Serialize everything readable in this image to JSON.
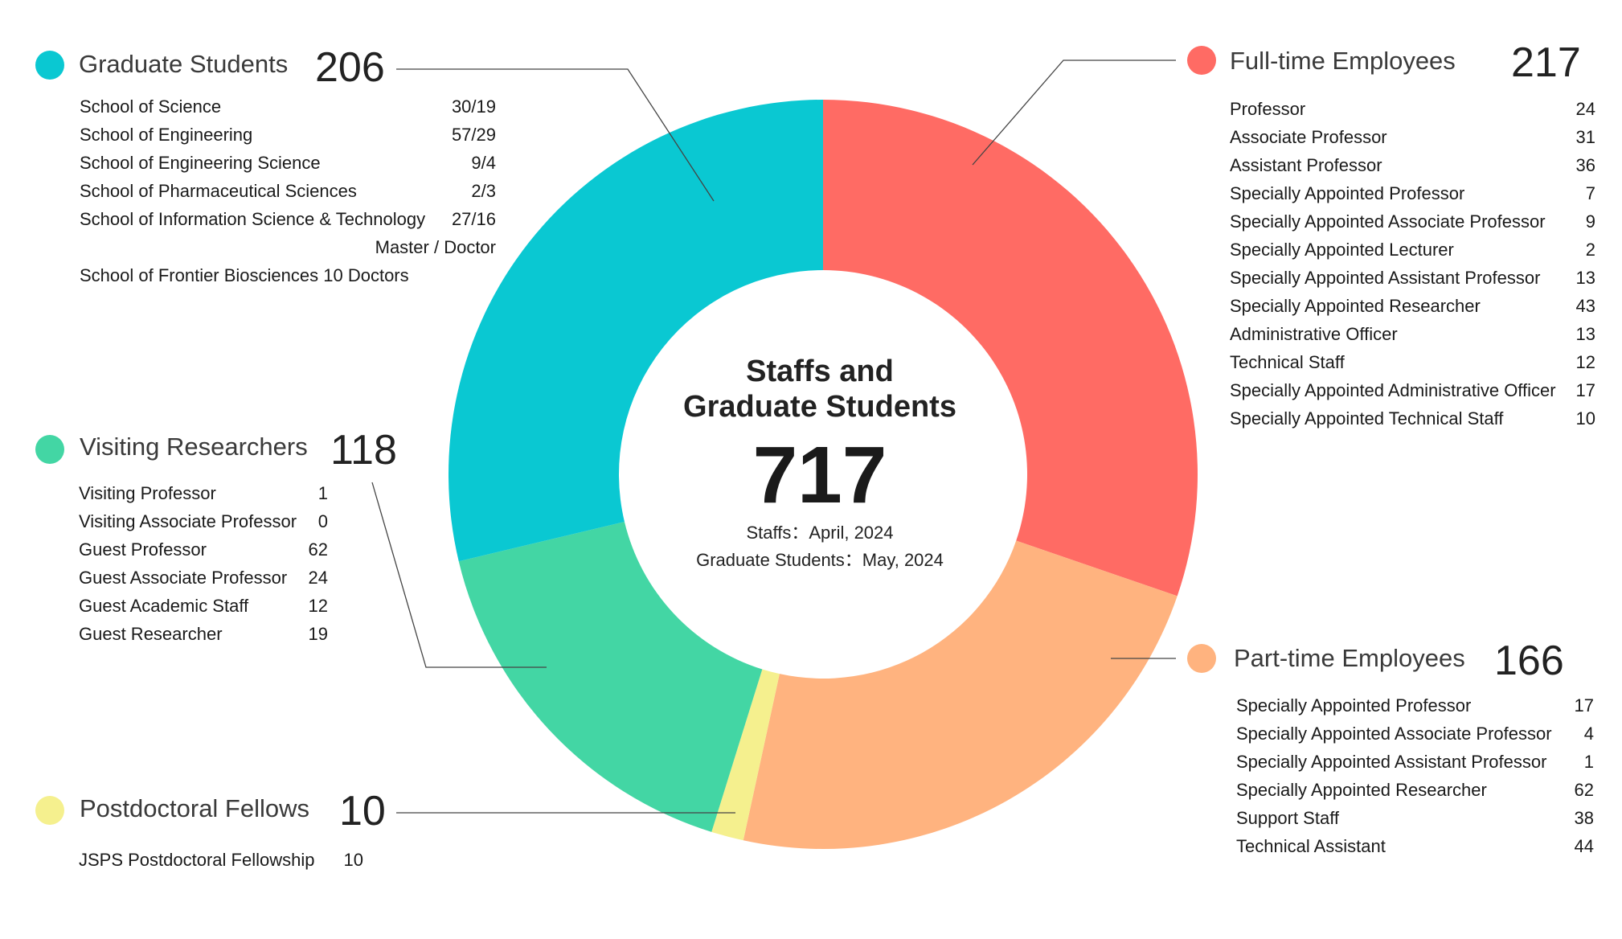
{
  "center": {
    "title_line1": "Staffs and",
    "title_line2": "Graduate Students",
    "total": "717",
    "note_staffs": "Staffs：April, 2024",
    "note_students": "Graduate Students：May, 2024"
  },
  "groups": {
    "graduate": {
      "title": "Graduate Students",
      "total": "206",
      "color": "#0ac8d2",
      "rows": [
        {
          "label": "School of Science",
          "value": "30/19"
        },
        {
          "label": "School of Engineering",
          "value": "57/29"
        },
        {
          "label": "School of Engineering Science",
          "value": "9/4"
        },
        {
          "label": "School of Pharmaceutical Sciences",
          "value": "2/3"
        },
        {
          "label": "School of Information Science & Technology",
          "value": "27/16"
        },
        {
          "label": "",
          "value": "Master / Doctor"
        },
        {
          "label": "School of Frontier Biosciences 10 Doctors",
          "value": ""
        }
      ]
    },
    "fulltime": {
      "title": "Full-time Employees",
      "total": "217",
      "color": "#ff6b64",
      "rows": [
        {
          "label": "Professor",
          "value": "24"
        },
        {
          "label": "Associate Professor",
          "value": "31"
        },
        {
          "label": "Assistant Professor",
          "value": "36"
        },
        {
          "label": "Specially Appointed Professor",
          "value": "7"
        },
        {
          "label": "Specially Appointed Associate Professor",
          "value": "9"
        },
        {
          "label": "Specially Appointed Lecturer",
          "value": "2"
        },
        {
          "label": "Specially Appointed Assistant Professor",
          "value": "13"
        },
        {
          "label": "Specially Appointed Researcher",
          "value": "43"
        },
        {
          "label": "Administrative Officer",
          "value": "13"
        },
        {
          "label": "Technical Staff",
          "value": "12"
        },
        {
          "label": "Specially Appointed Administrative Officer",
          "value": "17"
        },
        {
          "label": "Specially Appointed Technical Staff",
          "value": "10"
        }
      ]
    },
    "visiting": {
      "title": "Visiting Researchers",
      "total": "118",
      "color": "#43d6a4",
      "rows": [
        {
          "label": "Visiting Professor",
          "value": "1"
        },
        {
          "label": "Visiting Associate Professor",
          "value": "0"
        },
        {
          "label": "Guest Professor",
          "value": "62"
        },
        {
          "label": "Guest Associate Professor",
          "value": "24"
        },
        {
          "label": "Guest Academic Staff",
          "value": "12"
        },
        {
          "label": "Guest Researcher",
          "value": "19"
        }
      ]
    },
    "parttime": {
      "title": "Part-time Employees",
      "total": "166",
      "color": "#ffb37f",
      "rows": [
        {
          "label": "Specially Appointed Professor",
          "value": "17"
        },
        {
          "label": "Specially Appointed Associate Professor",
          "value": "4"
        },
        {
          "label": "Specially Appointed Assistant Professor",
          "value": "1"
        },
        {
          "label": "Specially Appointed Researcher",
          "value": "62"
        },
        {
          "label": "Support Staff",
          "value": "38"
        },
        {
          "label": "Technical Assistant",
          "value": "44"
        }
      ]
    },
    "postdoc": {
      "title": "Postdoctoral Fellows",
      "total": "10",
      "color": "#f5f08e",
      "rows": [
        {
          "label": "JSPS Postdoctoral Fellowship",
          "value": "10"
        }
      ]
    }
  },
  "chart_data": {
    "type": "pie",
    "variant": "donut",
    "total": 717,
    "slices": [
      {
        "label": "Full-time Employees",
        "value": 217,
        "color": "#ff6b64"
      },
      {
        "label": "Part-time Employees",
        "value": 166,
        "color": "#ffb37f"
      },
      {
        "label": "Postdoctoral Fellows",
        "value": 10,
        "color": "#f5f08e"
      },
      {
        "label": "Visiting Researchers",
        "value": 118,
        "color": "#43d6a4"
      },
      {
        "label": "Graduate Students",
        "value": 206,
        "color": "#0ac8d2"
      }
    ]
  }
}
